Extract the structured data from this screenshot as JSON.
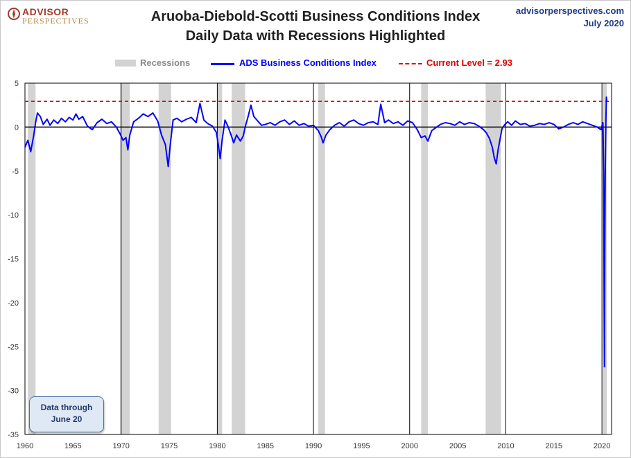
{
  "brand": {
    "line1": "ADVISOR",
    "line2": "PERSPECTIVES",
    "site": "advisorperspectives.com",
    "date": "July 2020"
  },
  "note": {
    "line1": "Data through",
    "line2": "June 20"
  },
  "colors": {
    "series": "#0000ff",
    "current": "#e00000",
    "recession": "#d3d3d3",
    "zero": "#000000"
  },
  "chart_data": {
    "type": "line",
    "title": "Aruoba-Diebold-Scotti Business Conditions Index",
    "subtitle": "Daily Data with Recessions Highlighted",
    "xlim": [
      1960,
      2021
    ],
    "ylim": [
      -35,
      5
    ],
    "x_ticks": [
      "1960",
      "1965",
      "1970",
      "1975",
      "1980",
      "1985",
      "1990",
      "1995",
      "2000",
      "2005",
      "2010",
      "2015",
      "2020"
    ],
    "y_ticks": [
      "5",
      "0",
      "-5",
      "-10",
      "-15",
      "-20",
      "-25",
      "-30",
      "-35"
    ],
    "legend": {
      "recessions": "Recessions",
      "series": "ADS Business Conditions Index",
      "current": "Current Level =  2.93"
    },
    "current_level": 2.93,
    "recessions": [
      [
        1960.3,
        1961.1
      ],
      [
        1969.9,
        1970.9
      ],
      [
        1973.9,
        1975.2
      ],
      [
        1980.0,
        1980.5
      ],
      [
        1981.5,
        1982.9
      ],
      [
        1990.5,
        1991.2
      ],
      [
        2001.2,
        2001.9
      ],
      [
        2007.9,
        2009.5
      ],
      [
        2020.1,
        2020.5
      ]
    ],
    "decade_lines": [
      1970,
      1980,
      1990,
      2000,
      2010,
      2020
    ],
    "series": [
      {
        "name": "ADS Business Conditions Index",
        "x": [
          1960.0,
          1960.3,
          1960.6,
          1960.9,
          1961.1,
          1961.3,
          1961.6,
          1961.9,
          1962.3,
          1962.6,
          1963.0,
          1963.4,
          1963.8,
          1964.2,
          1964.6,
          1965.0,
          1965.3,
          1965.6,
          1966.0,
          1966.5,
          1967.0,
          1967.5,
          1968.0,
          1968.5,
          1969.0,
          1969.5,
          1969.9,
          1970.2,
          1970.5,
          1970.7,
          1970.9,
          1971.3,
          1971.8,
          1972.3,
          1972.8,
          1973.3,
          1973.8,
          1974.2,
          1974.6,
          1974.9,
          1975.1,
          1975.4,
          1975.8,
          1976.3,
          1976.8,
          1977.3,
          1977.8,
          1978.2,
          1978.6,
          1979.0,
          1979.5,
          1979.9,
          1980.1,
          1980.3,
          1980.5,
          1980.8,
          1981.1,
          1981.4,
          1981.7,
          1982.0,
          1982.4,
          1982.7,
          1982.9,
          1983.2,
          1983.5,
          1983.8,
          1984.2,
          1984.6,
          1985.0,
          1985.5,
          1986.0,
          1986.5,
          1987.0,
          1987.5,
          1988.0,
          1988.5,
          1989.0,
          1989.5,
          1990.0,
          1990.5,
          1990.8,
          1991.0,
          1991.3,
          1991.7,
          1992.2,
          1992.7,
          1993.2,
          1993.7,
          1994.2,
          1994.7,
          1995.2,
          1995.7,
          1996.2,
          1996.7,
          1997.0,
          1997.4,
          1997.8,
          1998.3,
          1998.8,
          1999.3,
          1999.8,
          2000.3,
          2000.8,
          2001.2,
          2001.6,
          2001.9,
          2002.3,
          2002.7,
          2003.2,
          2003.7,
          2004.2,
          2004.7,
          2005.2,
          2005.7,
          2006.2,
          2006.7,
          2007.2,
          2007.7,
          2008.0,
          2008.3,
          2008.6,
          2008.8,
          2009.0,
          2009.2,
          2009.4,
          2009.6,
          2009.9,
          2010.2,
          2010.6,
          2011.0,
          2011.5,
          2012.0,
          2012.5,
          2013.0,
          2013.5,
          2014.0,
          2014.5,
          2015.0,
          2015.5,
          2016.0,
          2016.5,
          2017.0,
          2017.5,
          2018.0,
          2018.5,
          2019.0,
          2019.5,
          2019.9,
          2020.1,
          2020.18,
          2020.22,
          2020.26,
          2020.3,
          2020.34,
          2020.38,
          2020.42,
          2020.46,
          2020.5
        ],
        "values": [
          -2.3,
          -1.5,
          -2.8,
          -1.0,
          0.5,
          1.6,
          1.2,
          0.3,
          0.9,
          0.2,
          0.8,
          0.4,
          1.0,
          0.6,
          1.1,
          0.8,
          1.5,
          0.9,
          1.2,
          0.1,
          -0.3,
          0.5,
          0.9,
          0.4,
          0.6,
          0.0,
          -0.8,
          -1.5,
          -1.2,
          -2.6,
          -0.9,
          0.6,
          1.0,
          1.5,
          1.2,
          1.6,
          0.7,
          -0.9,
          -2.0,
          -4.5,
          -2.1,
          0.8,
          1.0,
          0.6,
          0.9,
          1.1,
          0.5,
          2.7,
          0.8,
          0.4,
          0.1,
          -0.6,
          -2.0,
          -3.6,
          -1.5,
          0.8,
          0.1,
          -0.8,
          -1.8,
          -0.9,
          -1.6,
          -1.0,
          0.0,
          1.2,
          2.5,
          1.2,
          0.7,
          0.2,
          0.3,
          0.5,
          0.2,
          0.6,
          0.8,
          0.3,
          0.7,
          0.2,
          0.4,
          0.1,
          0.2,
          -0.4,
          -1.1,
          -1.8,
          -0.9,
          -0.3,
          0.2,
          0.5,
          0.1,
          0.6,
          0.8,
          0.4,
          0.2,
          0.5,
          0.6,
          0.3,
          2.6,
          0.5,
          0.8,
          0.4,
          0.6,
          0.2,
          0.7,
          0.5,
          -0.3,
          -1.2,
          -1.0,
          -1.6,
          -0.4,
          -0.1,
          0.3,
          0.5,
          0.4,
          0.2,
          0.6,
          0.3,
          0.5,
          0.4,
          0.1,
          -0.3,
          -0.7,
          -1.3,
          -2.3,
          -3.5,
          -4.2,
          -2.6,
          -1.4,
          -0.2,
          0.3,
          0.6,
          0.2,
          0.7,
          0.3,
          0.4,
          0.1,
          0.2,
          0.4,
          0.3,
          0.5,
          0.3,
          -0.2,
          0.0,
          0.3,
          0.5,
          0.3,
          0.6,
          0.4,
          0.2,
          0.0,
          -0.3,
          0.5,
          -5.0,
          -19.0,
          -27.3,
          -13.0,
          -6.0,
          -1.5,
          1.5,
          3.4,
          2.93
        ]
      }
    ]
  }
}
